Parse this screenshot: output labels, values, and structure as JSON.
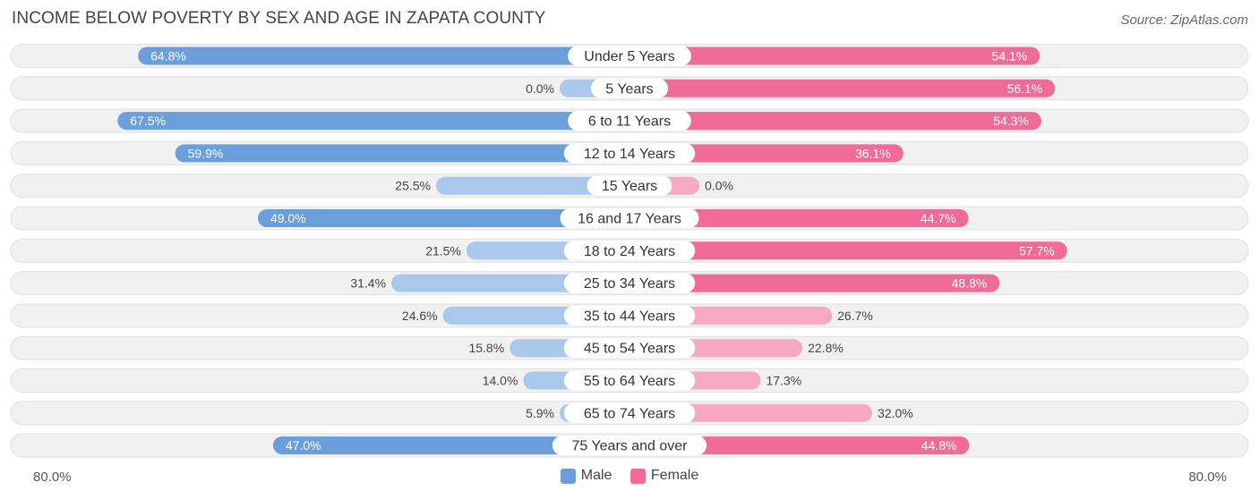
{
  "title": "INCOME BELOW POVERTY BY SEX AND AGE IN ZAPATA COUNTY",
  "source": "Source: ZipAtlas.com",
  "axis": {
    "left_label": "80.0%",
    "right_label": "80.0%"
  },
  "legend": {
    "male": "Male",
    "female": "Female"
  },
  "colors": {
    "male_strong": "#6a9fdb",
    "male_light": "#a9c8ec",
    "female_strong": "#f06b98",
    "female_light": "#f7a8c3",
    "row_bg": "#f1f1f1",
    "row_border": "#e0e0e0"
  },
  "chart_data": {
    "type": "bar",
    "orientation": "horizontal-diverging",
    "title": "INCOME BELOW POVERTY BY SEX AND AGE IN ZAPATA COUNTY",
    "xlim": [
      -80,
      80
    ],
    "categories": [
      "Under 5 Years",
      "5 Years",
      "6 to 11 Years",
      "12 to 14 Years",
      "15 Years",
      "16 and 17 Years",
      "18 to 24 Years",
      "25 to 34 Years",
      "35 to 44 Years",
      "45 to 54 Years",
      "55 to 64 Years",
      "65 to 74 Years",
      "75 Years and over"
    ],
    "series": [
      {
        "name": "Male",
        "values": [
          64.8,
          0.0,
          67.5,
          59.9,
          25.5,
          49.0,
          21.5,
          31.4,
          24.6,
          15.8,
          14.0,
          5.9,
          47.0
        ],
        "labels": [
          "64.8%",
          "0.0%",
          "67.5%",
          "59.9%",
          "25.5%",
          "49.0%",
          "21.5%",
          "31.4%",
          "24.6%",
          "15.8%",
          "14.0%",
          "5.9%",
          "47.0%"
        ]
      },
      {
        "name": "Female",
        "values": [
          54.1,
          56.1,
          54.3,
          36.1,
          0.0,
          44.7,
          57.7,
          48.8,
          26.7,
          22.8,
          17.3,
          32.0,
          44.8
        ],
        "labels": [
          "54.1%",
          "56.1%",
          "54.3%",
          "36.1%",
          "0.0%",
          "44.7%",
          "57.7%",
          "48.8%",
          "26.7%",
          "22.8%",
          "17.3%",
          "32.0%",
          "44.8%"
        ]
      }
    ]
  }
}
